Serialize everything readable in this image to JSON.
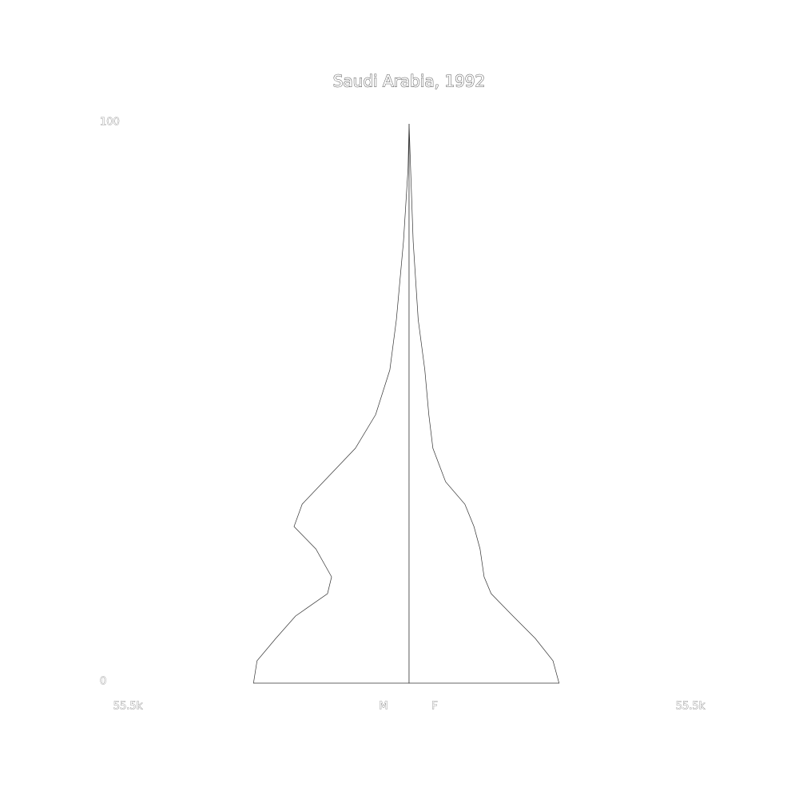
{
  "chart_data": {
    "type": "pyramid",
    "title": "Saudi Arabia, 1992",
    "ages": [
      0,
      4,
      8,
      12,
      16,
      19,
      24,
      28,
      32,
      36,
      42,
      48,
      56,
      65,
      79,
      92,
      100
    ],
    "series": [
      {
        "name": "M",
        "color": "#ffffff",
        "side": "left",
        "values": [
          30700,
          30000,
          26300,
          22400,
          16100,
          15300,
          18400,
          22700,
          21100,
          16900,
          10600,
          6600,
          3800,
          2500,
          1100,
          200,
          0
        ]
      },
      {
        "name": "F",
        "color": "#ffffff",
        "side": "right",
        "values": [
          29600,
          28400,
          24900,
          20500,
          16200,
          14800,
          14000,
          12800,
          11000,
          7200,
          4700,
          3900,
          3100,
          1800,
          800,
          300,
          0
        ]
      }
    ],
    "xlim": [
      0,
      55500
    ],
    "xticks": [
      {
        "value": 55500,
        "label": "55.5k"
      }
    ],
    "ylim": [
      0,
      100
    ],
    "yticks": [
      0,
      100
    ]
  }
}
